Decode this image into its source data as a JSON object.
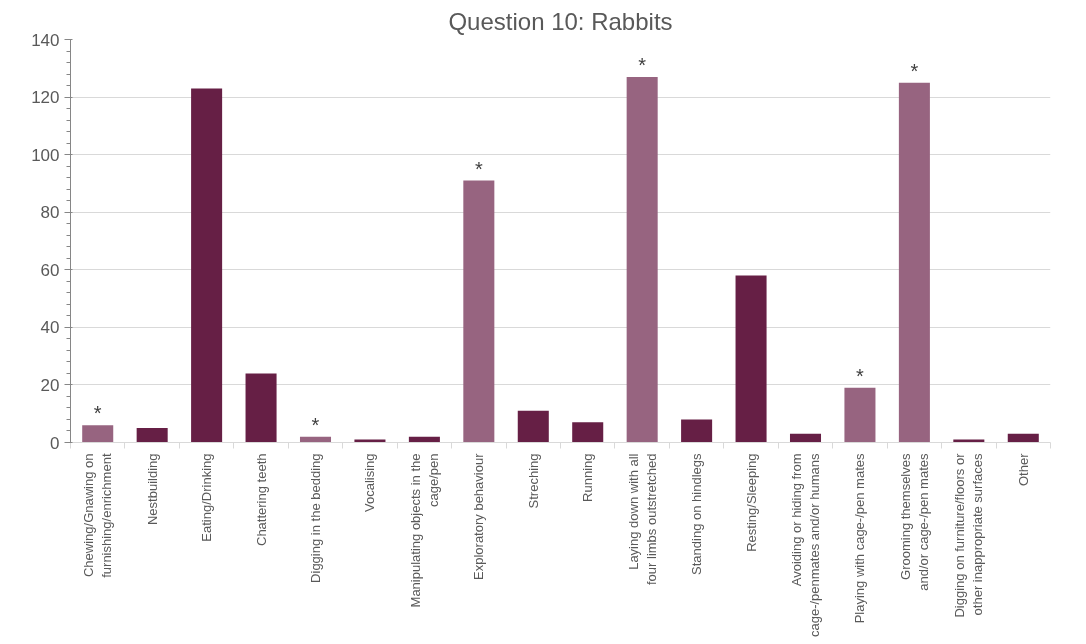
{
  "chart_data": {
    "type": "bar",
    "title": "Question 10: Rabbits",
    "categories": [
      "Chewing/Gnawing on\nfurnishing/enrichment",
      "Nestbuilding",
      "Eating/Drinking",
      "Chattering teeth",
      "Digging in the bedding",
      "Vocalising",
      "Manipulating objects in the\ncage/pen",
      "Exploratory behaviour",
      "Streching",
      "Running",
      "Laying down with all\nfour limbs outstretched",
      "Standing on hindlegs",
      "Resting/Sleeping",
      "Avoiding or hiding from\ncage-/penmates and/or humans",
      "Playing with cage-/pen mates",
      "Grooming themselves\nand/or cage-/pen mates",
      "Digging on furniture/floors or\nother inappropriate surfaces",
      "Other"
    ],
    "values": [
      6,
      5,
      123,
      24,
      2,
      1,
      2,
      91,
      11,
      7,
      127,
      8,
      58,
      3,
      19,
      125,
      1,
      3
    ],
    "colors": [
      "#976480",
      "#661f45",
      "#661f45",
      "#661f45",
      "#976480",
      "#661f45",
      "#661f45",
      "#976480",
      "#661f45",
      "#661f45",
      "#976480",
      "#661f45",
      "#661f45",
      "#661f45",
      "#976480",
      "#976480",
      "#661f45",
      "#661f45"
    ],
    "ylim": [
      0,
      140
    ],
    "yticks": [
      0,
      20,
      40,
      60,
      80,
      100,
      120,
      140
    ],
    "grid": "y",
    "annotations": [
      {
        "text": "*",
        "x": "Chewing/Gnawing on\nfurnishing/enrichment",
        "y": 6
      },
      {
        "text": "*",
        "x": "Digging in the bedding",
        "y": 2
      },
      {
        "text": "*",
        "x": "Exploratory behaviour",
        "y": 91
      },
      {
        "text": "*",
        "x": "Laying down with all\nfour limbs outstretched",
        "y": 127
      },
      {
        "text": "*",
        "x": "Playing with cage-/pen mates",
        "y": 19
      },
      {
        "text": "*",
        "x": "Grooming themselves\nand/or cage-/pen mates",
        "y": 125
      }
    ]
  }
}
